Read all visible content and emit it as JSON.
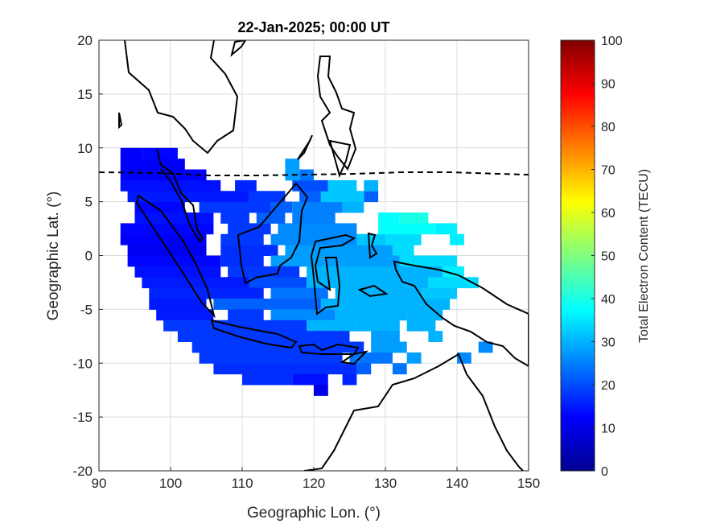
{
  "chart_data": {
    "type": "heatmap",
    "title": "22-Jan-2025; 00:00 UT",
    "xlabel": "Geographic Lon. (°)",
    "ylabel": "Geographic Lat. (°)",
    "xlim": [
      90,
      150
    ],
    "ylim": [
      -20,
      20
    ],
    "xticks": [
      90,
      100,
      110,
      120,
      130,
      140,
      150
    ],
    "yticks": [
      -20,
      -15,
      -10,
      -5,
      0,
      5,
      10,
      15,
      20
    ],
    "grid": true,
    "colormap": "jet",
    "colorbar": {
      "label": "Total Electron Content (TECU)",
      "range": [
        0,
        100
      ],
      "ticks": [
        0,
        10,
        20,
        30,
        40,
        50,
        60,
        70,
        80,
        90,
        100
      ],
      "location": "right"
    },
    "cells_format": "lat -> [[lon_start, lon_end, TECU], ...]",
    "cells": {
      "9": [
        [
          93,
          95,
          12
        ],
        [
          96,
          100,
          13
        ]
      ],
      "8": [
        [
          93,
          101,
          12
        ],
        [
          116,
          117,
          28
        ]
      ],
      "7": [
        [
          93,
          104,
          12
        ],
        [
          116,
          117,
          28
        ],
        [
          118,
          119,
          24
        ]
      ],
      "6": [
        [
          93,
          106,
          14
        ],
        [
          109,
          111,
          16
        ],
        [
          117,
          121,
          20
        ],
        [
          122,
          125,
          32
        ],
        [
          127,
          128,
          30
        ]
      ],
      "5": [
        [
          94,
          110,
          15
        ],
        [
          111,
          115,
          18
        ],
        [
          118,
          120,
          22
        ],
        [
          121,
          126,
          32
        ],
        [
          127,
          128,
          22
        ]
      ],
      "4": [
        [
          95,
          101,
          13
        ],
        [
          104,
          113,
          18
        ],
        [
          114,
          116,
          22
        ],
        [
          117,
          123,
          25
        ],
        [
          124,
          126,
          30
        ]
      ],
      "3": [
        [
          95,
          105,
          14
        ],
        [
          107,
          110,
          18
        ],
        [
          112,
          115,
          22
        ],
        [
          117,
          122,
          25
        ],
        [
          129,
          131,
          38
        ],
        [
          132,
          135,
          40
        ]
      ],
      "2": [
        [
          93,
          105,
          13
        ],
        [
          108,
          113,
          18
        ],
        [
          115,
          125,
          26
        ],
        [
          129,
          136,
          38
        ],
        [
          137,
          139,
          36
        ]
      ],
      "1": [
        [
          93,
          104,
          12
        ],
        [
          107,
          112,
          18
        ],
        [
          114,
          125,
          26
        ],
        [
          126,
          129,
          32
        ],
        [
          130,
          134,
          34
        ],
        [
          139,
          140,
          36
        ]
      ],
      "0": [
        [
          94,
          104,
          11
        ],
        [
          107,
          114,
          17
        ],
        [
          116,
          130,
          28
        ],
        [
          131,
          133,
          34
        ]
      ],
      "-1": [
        [
          94,
          106,
          13
        ],
        [
          107,
          112,
          17
        ],
        [
          114,
          131,
          28
        ],
        [
          132,
          139,
          34
        ]
      ],
      "-2": [
        [
          95,
          106,
          14
        ],
        [
          108,
          117,
          18
        ],
        [
          119,
          137,
          30
        ],
        [
          138,
          140,
          36
        ]
      ],
      "-3": [
        [
          96,
          110,
          15
        ],
        [
          111,
          118,
          20
        ],
        [
          119,
          135,
          30
        ],
        [
          136,
          142,
          34
        ]
      ],
      "-4": [
        [
          97,
          112,
          16
        ],
        [
          114,
          121,
          24
        ],
        [
          123,
          134,
          30
        ],
        [
          135,
          139,
          32
        ]
      ],
      "-5": [
        [
          97,
          104,
          15
        ],
        [
          106,
          120,
          22
        ],
        [
          121,
          133,
          30
        ],
        [
          134,
          138,
          30
        ]
      ],
      "-6": [
        [
          98,
          105,
          15
        ],
        [
          108,
          112,
          18
        ],
        [
          114,
          122,
          26
        ],
        [
          123,
          132,
          30
        ],
        [
          133,
          137,
          30
        ]
      ],
      "-7": [
        [
          99,
          118,
          18
        ],
        [
          119,
          125,
          30
        ],
        [
          126,
          131,
          30
        ],
        [
          133,
          136,
          30
        ]
      ],
      "-8": [
        [
          101,
          124,
          18
        ],
        [
          128,
          131,
          28
        ],
        [
          136,
          137,
          30
        ]
      ],
      "-9": [
        [
          103,
          126,
          18
        ],
        [
          128,
          132,
          28
        ],
        [
          143,
          144,
          26
        ]
      ],
      "-10": [
        [
          104,
          123,
          18
        ],
        [
          125,
          130,
          24
        ],
        [
          133,
          134,
          28
        ],
        [
          140,
          141,
          26
        ]
      ],
      "-11": [
        [
          106,
          125,
          17
        ],
        [
          126,
          127,
          22
        ],
        [
          131,
          132,
          24
        ]
      ],
      "-12": [
        [
          110,
          116,
          17
        ],
        [
          117,
          121,
          14
        ],
        [
          124,
          125,
          16
        ]
      ],
      "-13": [
        [
          120,
          121,
          10
        ]
      ]
    },
    "annotations": [
      "magnetic equator (dashed line)",
      "coastlines (black)"
    ]
  }
}
